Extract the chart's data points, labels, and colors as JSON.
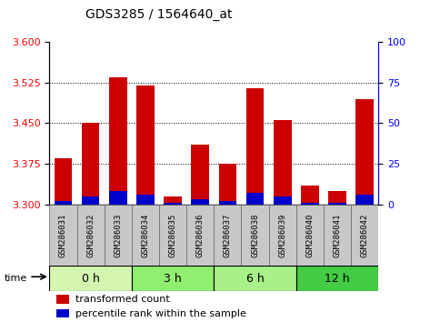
{
  "title": "GDS3285 / 1564640_at",
  "samples": [
    "GSM286031",
    "GSM286032",
    "GSM286033",
    "GSM286034",
    "GSM286035",
    "GSM286036",
    "GSM286037",
    "GSM286038",
    "GSM286039",
    "GSM286040",
    "GSM286041",
    "GSM286042"
  ],
  "transformed_count": [
    3.385,
    3.45,
    3.535,
    3.52,
    3.315,
    3.41,
    3.375,
    3.515,
    3.455,
    3.335,
    3.325,
    3.495
  ],
  "percentile_rank": [
    2,
    5,
    8,
    6,
    1,
    3,
    2,
    7,
    5,
    1,
    1,
    6
  ],
  "time_groups": [
    {
      "label": "0 h",
      "start": 0,
      "end": 3,
      "color": "#d4f5b0"
    },
    {
      "label": "3 h",
      "start": 3,
      "end": 6,
      "color": "#90ee70"
    },
    {
      "label": "6 h",
      "start": 6,
      "end": 9,
      "color": "#a8f08a"
    },
    {
      "label": "12 h",
      "start": 9,
      "end": 12,
      "color": "#44cc44"
    }
  ],
  "ylim_left": [
    3.3,
    3.6
  ],
  "ylim_right": [
    0,
    100
  ],
  "yticks_left": [
    3.3,
    3.375,
    3.45,
    3.525,
    3.6
  ],
  "yticks_right": [
    0,
    25,
    50,
    75,
    100
  ],
  "bar_color_red": "#cc0000",
  "bar_color_blue": "#0000cc",
  "background_color": "#ffffff",
  "sample_bg_color": "#c8c8c8",
  "title_fontsize": 10,
  "tick_fontsize": 8,
  "label_fontsize": 6.5,
  "time_fontsize": 9,
  "legend_fontsize": 8
}
